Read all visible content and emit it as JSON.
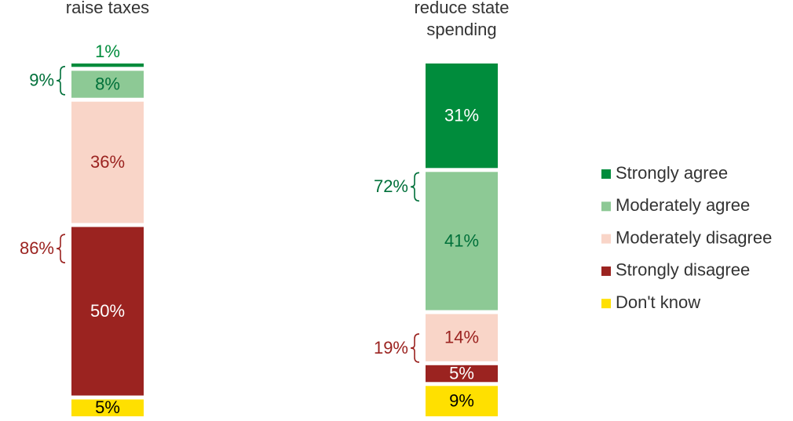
{
  "chart_data": {
    "type": "stacked-bar",
    "categories": [
      "raise taxes",
      "reduce state spending"
    ],
    "series": [
      {
        "name": "Strongly agree",
        "color": "#008c3c",
        "label_color": "#ffffff",
        "values": [
          1,
          31
        ],
        "value_labels": [
          "1%",
          "31%"
        ]
      },
      {
        "name": "Moderately agree",
        "color": "#8dc995",
        "label_color": "#00703a",
        "values": [
          8,
          41
        ],
        "value_labels": [
          "8%",
          "41%"
        ]
      },
      {
        "name": "Moderately disagree",
        "color": "#f9d5c8",
        "label_color": "#9b2320",
        "values": [
          36,
          14
        ],
        "value_labels": [
          "36%",
          "14%"
        ]
      },
      {
        "name": "Strongly disagree",
        "color": "#9b2320",
        "label_color": "#ffffff",
        "values": [
          50,
          5
        ],
        "value_labels": [
          "50%",
          "5%"
        ]
      },
      {
        "name": "Don't know",
        "color": "#ffe000",
        "label_color": "#000000",
        "values": [
          5,
          9
        ],
        "value_labels": [
          "5%",
          "9%"
        ]
      }
    ],
    "agree_totals": {
      "color": "#00703a",
      "values": [
        9,
        72
      ],
      "value_labels": [
        "9%",
        "72%"
      ]
    },
    "disagree_totals": {
      "color": "#9b2320",
      "values": [
        86,
        19
      ],
      "value_labels": [
        "86%",
        "19%"
      ]
    }
  }
}
